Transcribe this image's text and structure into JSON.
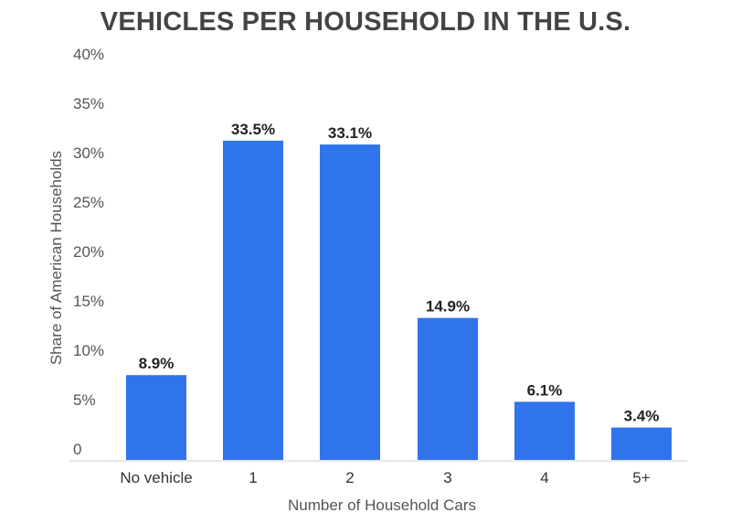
{
  "chart_data": {
    "type": "bar",
    "title": "VEHICLES PER HOUSEHOLD IN THE U.S.",
    "xlabel": "Number of Household Cars",
    "ylabel": "Share of American Households",
    "categories": [
      "No vehicle",
      "1",
      "2",
      "3",
      "4",
      "5+"
    ],
    "values": [
      8.9,
      33.5,
      33.1,
      14.9,
      6.1,
      3.4
    ],
    "data_labels": [
      "8.9%",
      "33.5%",
      "33.1%",
      "14.9%",
      "6.1%",
      "3.4%"
    ],
    "ylim": [
      0,
      40
    ],
    "y_ticks": [
      {
        "value": 0,
        "label": "0"
      },
      {
        "value": 5,
        "label": "5%"
      },
      {
        "value": 10,
        "label": "10%"
      },
      {
        "value": 15,
        "label": "15%"
      },
      {
        "value": 20,
        "label": "20%"
      },
      {
        "value": 25,
        "label": "25%"
      },
      {
        "value": 30,
        "label": "30%"
      },
      {
        "value": 35,
        "label": "35%"
      },
      {
        "value": 40,
        "label": "40%"
      }
    ],
    "bar_color": "#3074EC",
    "grid": false,
    "legend": "none"
  }
}
